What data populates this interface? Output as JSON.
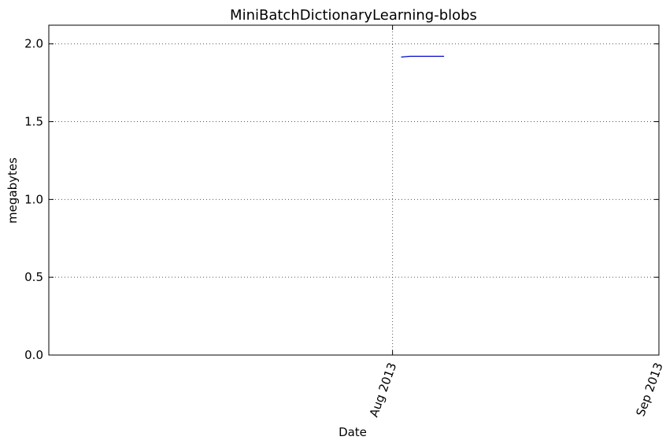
{
  "chart_data": {
    "type": "line",
    "title": "MiniBatchDictionaryLearning-blobs",
    "xlabel": "Date",
    "ylabel": "megabytes",
    "x_axis": "date",
    "xlim": [
      "2013-06-22",
      "2013-09-01"
    ],
    "ylim": [
      0,
      2.12
    ],
    "yticks": [
      0.0,
      0.5,
      1.0,
      1.5,
      2.0
    ],
    "ytick_labels": [
      "0.0",
      "0.5",
      "1.0",
      "1.5",
      "2.0"
    ],
    "xticks": [
      "2013-08-01",
      "2013-09-01"
    ],
    "xtick_labels": [
      "Aug 2013",
      "Sep 2013"
    ],
    "grid": true,
    "series": [
      {
        "color": "#0000cc",
        "x": [
          "2013-08-02",
          "2013-08-03",
          "2013-08-04",
          "2013-08-05",
          "2013-08-06",
          "2013-08-07"
        ],
        "y": [
          1.915,
          1.92,
          1.92,
          1.92,
          1.92,
          1.92
        ]
      }
    ]
  }
}
